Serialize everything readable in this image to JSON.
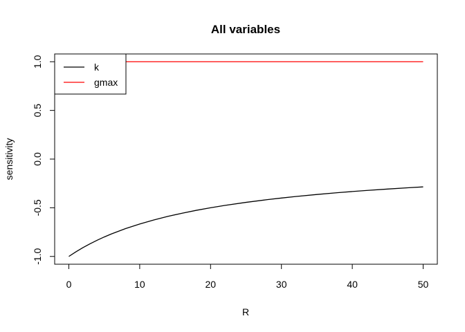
{
  "chart_data": {
    "type": "line",
    "title": "All variables",
    "xlabel": "R",
    "ylabel": "sensitivity",
    "xlim": [
      -2,
      52
    ],
    "ylim": [
      -1.08,
      1.08
    ],
    "x_ticks": [
      0,
      10,
      20,
      30,
      40,
      50
    ],
    "x_tick_labels": [
      "0",
      "10",
      "20",
      "30",
      "40",
      "50"
    ],
    "y_ticks": [
      -1.0,
      -0.5,
      0.0,
      0.5,
      1.0
    ],
    "y_tick_labels": [
      "-1.0",
      "-0.5",
      "0.0",
      "0.5",
      "1.0"
    ],
    "grid": false,
    "legend": "top-left",
    "series": [
      {
        "name": "k",
        "color": "#000000",
        "x": [
          0,
          1,
          2,
          3,
          4,
          5,
          6,
          8,
          10,
          12,
          14,
          16,
          18,
          20,
          22,
          25,
          28,
          30,
          32,
          35,
          38,
          40,
          42,
          45,
          48,
          50
        ],
        "y": [
          -1.0,
          -0.9524,
          -0.9091,
          -0.8696,
          -0.8333,
          -0.8,
          -0.7692,
          -0.7143,
          -0.6667,
          -0.625,
          -0.5882,
          -0.5556,
          -0.5263,
          -0.5,
          -0.4762,
          -0.4444,
          -0.4167,
          -0.4,
          -0.3846,
          -0.3636,
          -0.3448,
          -0.3333,
          -0.3226,
          -0.3077,
          -0.2941,
          -0.2857
        ]
      },
      {
        "name": "gmax",
        "color": "#ff0000",
        "x": [
          0,
          50
        ],
        "y": [
          1.0,
          1.0
        ]
      }
    ]
  }
}
